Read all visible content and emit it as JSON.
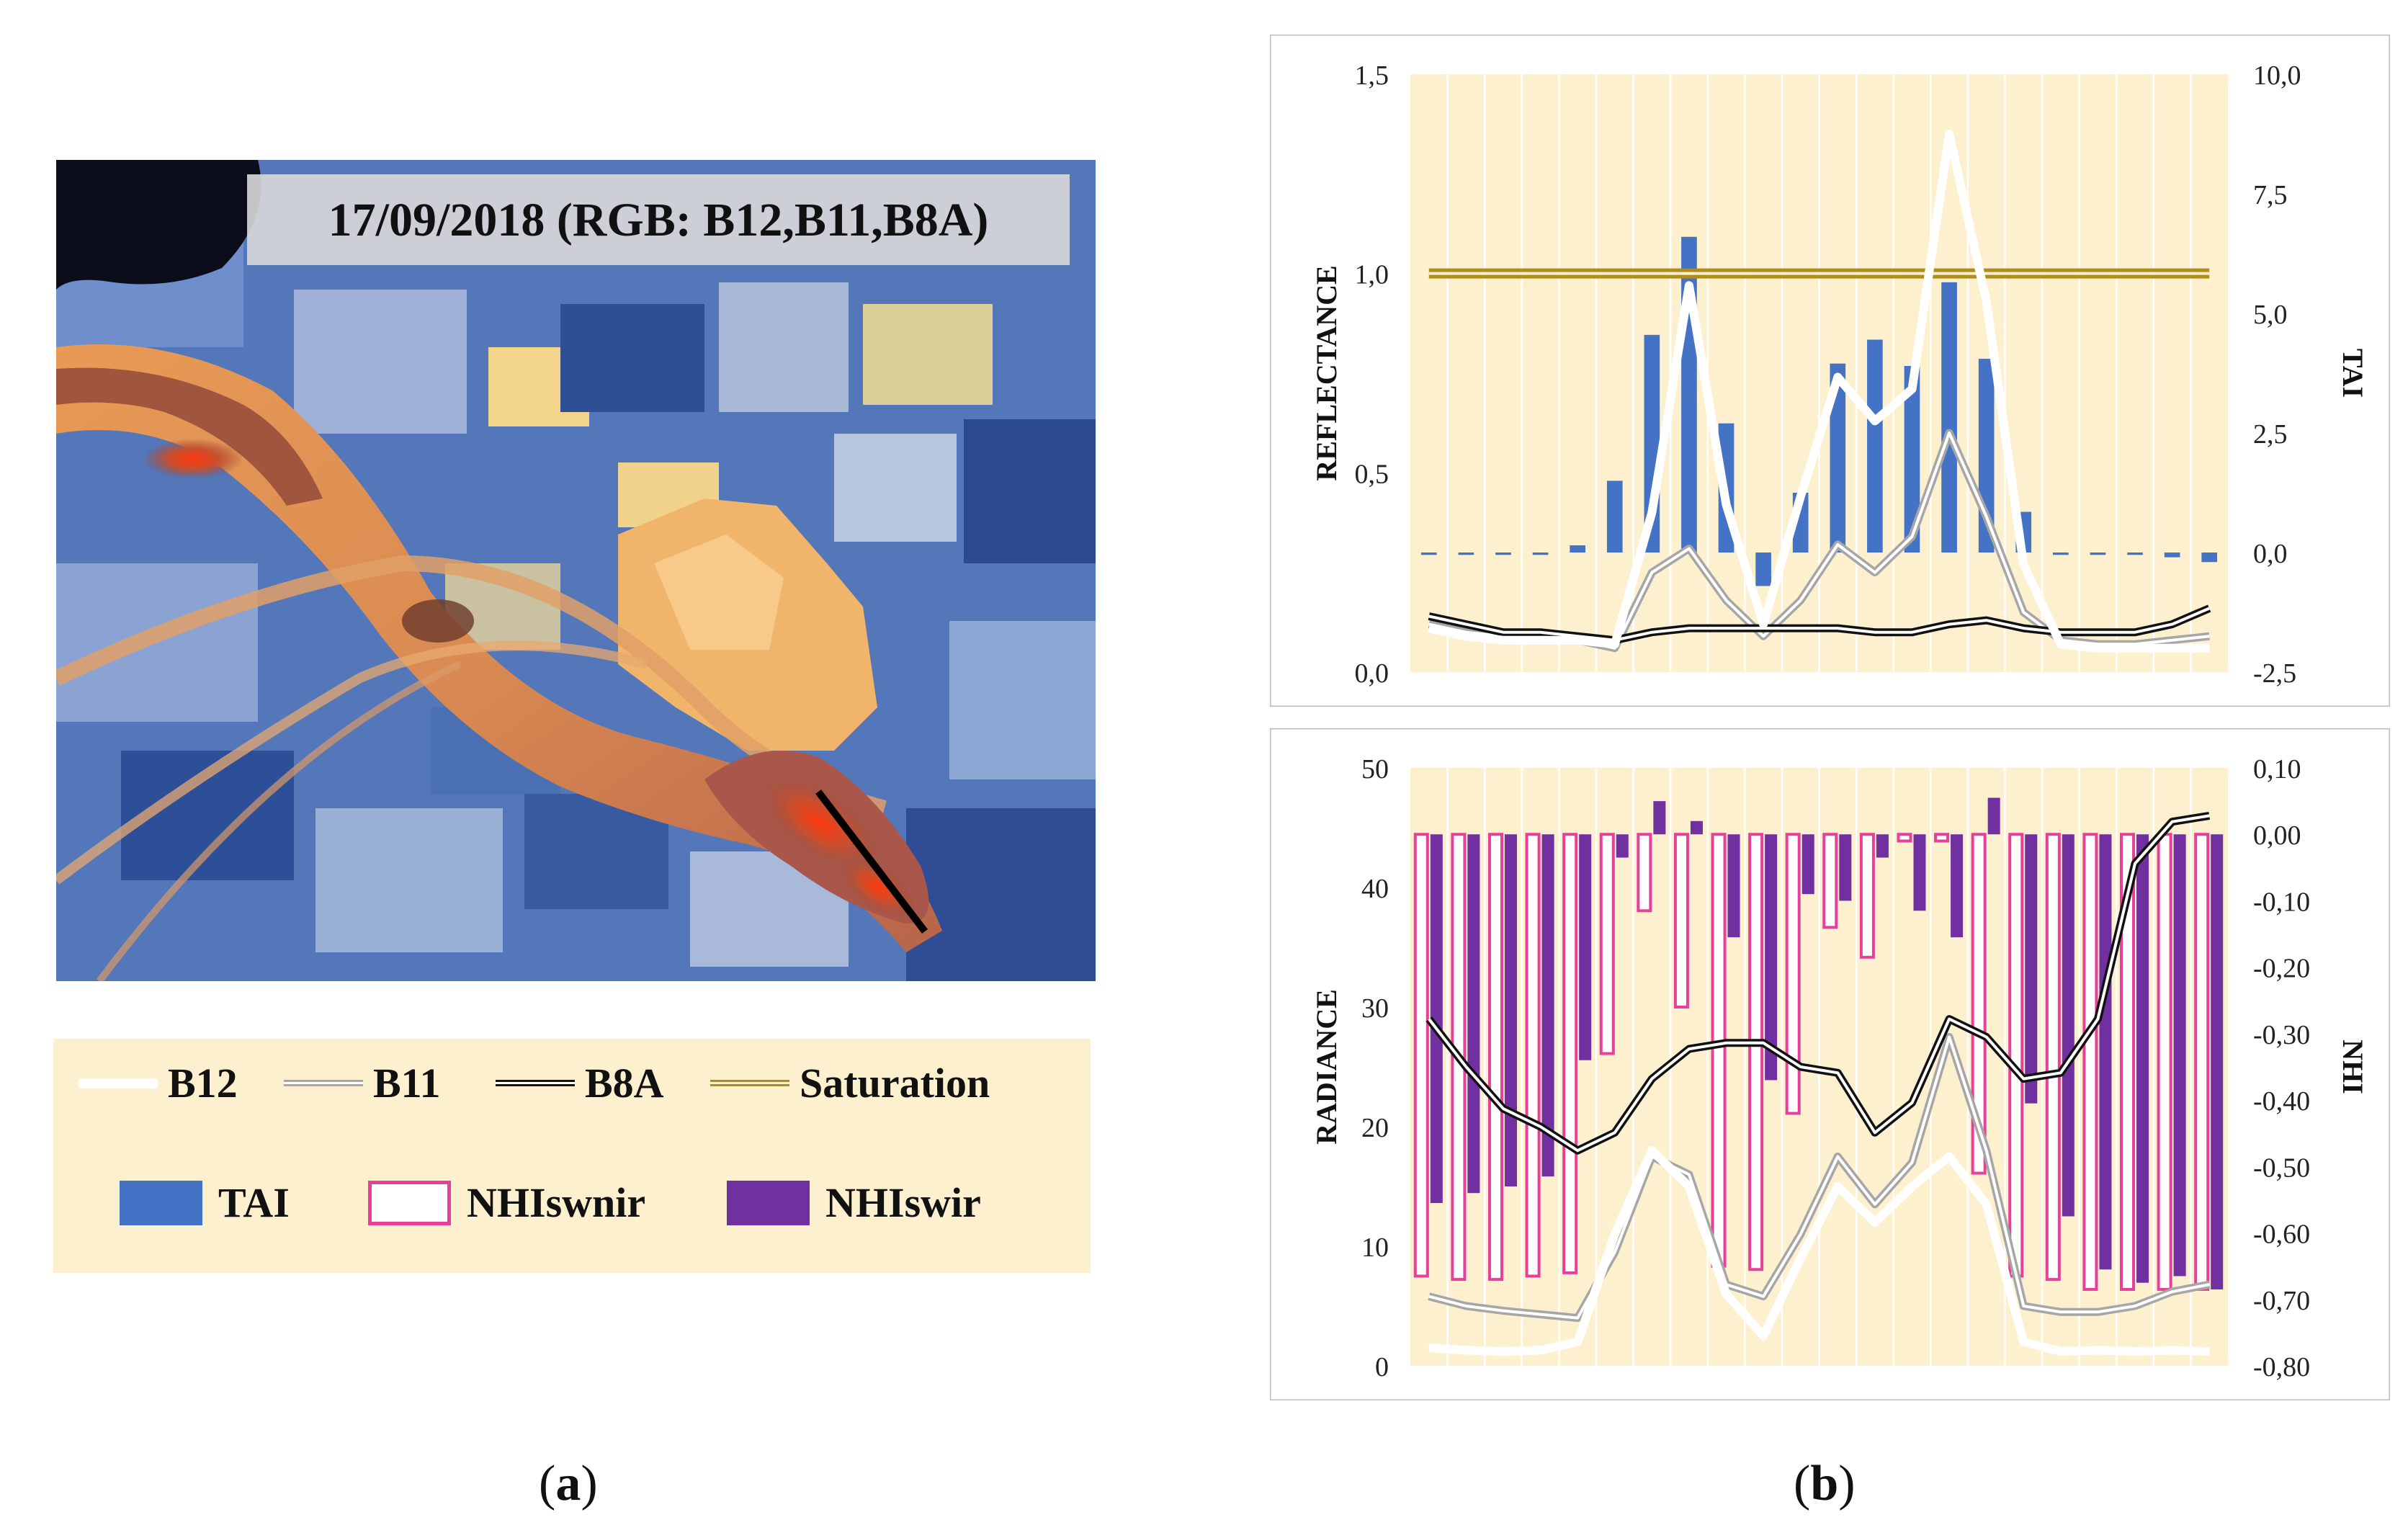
{
  "panels": {
    "a_label": "a",
    "b_label": "b",
    "image_caption": "17/09/2018 (RGB: B12,B11,B8A)"
  },
  "legend": {
    "b12": "B12",
    "b11": "B11",
    "b8a": "B8A",
    "saturation": "Saturation",
    "tai": "TAI",
    "nhiswnir": "NHIswnir",
    "nhiswir": "NHIswir"
  },
  "colors": {
    "plot_bg": "#fdf0cf",
    "tai": "#4472c4",
    "nhiswnir": "#e8409a",
    "nhiswir": "#7030a0",
    "b12": "#ffffff",
    "b11": "#a6a6a6",
    "b8a": "#111111",
    "saturation": "#b08c1a"
  },
  "chart_data": [
    {
      "type": "bar+line",
      "title": "",
      "ylabel": "REFLECTANCE",
      "y2label": "TAI",
      "ylim": [
        0,
        1.5
      ],
      "y2lim": [
        -2.5,
        10
      ],
      "yticks": [
        "0,0",
        "0,5",
        "1,0",
        "1,5"
      ],
      "y2ticks": [
        "-2,5",
        "0,0",
        "2,5",
        "5,0",
        "7,5",
        "10,0"
      ],
      "n_points": 22,
      "saturation": 1.0,
      "series": [
        {
          "name": "TAI",
          "kind": "bar",
          "axis": "right",
          "values": [
            -0.05,
            -0.05,
            -0.05,
            -0.05,
            0.15,
            1.5,
            4.55,
            6.6,
            2.7,
            -0.7,
            1.25,
            3.95,
            4.45,
            3.9,
            5.65,
            4.05,
            0.85,
            -0.05,
            -0.05,
            -0.05,
            -0.1,
            -0.2
          ]
        },
        {
          "name": "B12",
          "kind": "line",
          "axis": "left",
          "values": [
            0.11,
            0.09,
            0.08,
            0.08,
            0.08,
            0.07,
            0.4,
            0.97,
            0.42,
            0.12,
            0.44,
            0.74,
            0.63,
            0.71,
            1.35,
            0.93,
            0.27,
            0.07,
            0.06,
            0.06,
            0.06,
            0.06
          ]
        },
        {
          "name": "B11",
          "kind": "line",
          "axis": "left",
          "values": [
            0.12,
            0.1,
            0.09,
            0.09,
            0.08,
            0.06,
            0.25,
            0.31,
            0.18,
            0.09,
            0.18,
            0.32,
            0.25,
            0.34,
            0.6,
            0.39,
            0.15,
            0.08,
            0.07,
            0.07,
            0.08,
            0.09
          ]
        },
        {
          "name": "B8A",
          "kind": "line",
          "axis": "left",
          "values": [
            0.14,
            0.12,
            0.1,
            0.1,
            0.09,
            0.08,
            0.1,
            0.11,
            0.11,
            0.11,
            0.11,
            0.11,
            0.1,
            0.1,
            0.12,
            0.13,
            0.11,
            0.1,
            0.1,
            0.1,
            0.12,
            0.16
          ]
        }
      ]
    },
    {
      "type": "bar+line",
      "title": "",
      "ylabel": "RADIANCE",
      "y2label": "NHI",
      "ylim": [
        0,
        50
      ],
      "y2lim": [
        -0.8,
        0.1
      ],
      "yticks": [
        "0",
        "10",
        "20",
        "30",
        "40",
        "50"
      ],
      "y2ticks": [
        "-0,80",
        "-0,70",
        "-0,60",
        "-0,50",
        "-0,40",
        "-0,30",
        "-0,20",
        "-0,10",
        "0,00",
        "0,10"
      ],
      "n_points": 22,
      "series": [
        {
          "name": "NHIswnir",
          "kind": "bar",
          "axis": "right",
          "values": [
            -0.665,
            -0.67,
            -0.67,
            -0.665,
            -0.66,
            -0.33,
            -0.115,
            -0.26,
            -0.65,
            -0.655,
            -0.42,
            -0.14,
            -0.185,
            -0.01,
            -0.01,
            -0.51,
            -0.665,
            -0.67,
            -0.685,
            -0.685,
            -0.685,
            -0.685
          ]
        },
        {
          "name": "NHIswir",
          "kind": "bar",
          "axis": "right",
          "values": [
            -0.555,
            -0.54,
            -0.53,
            -0.515,
            -0.34,
            -0.035,
            0.05,
            0.02,
            -0.155,
            -0.37,
            -0.09,
            -0.1,
            -0.035,
            -0.115,
            -0.155,
            0.055,
            -0.405,
            -0.575,
            -0.655,
            -0.675,
            -0.665,
            -0.685
          ]
        },
        {
          "name": "B12",
          "kind": "line",
          "axis": "left",
          "values": [
            1.5,
            1.3,
            1.2,
            1.3,
            2.0,
            11.0,
            18.0,
            15.0,
            6.0,
            2.5,
            9.0,
            15.0,
            12.0,
            15.0,
            17.5,
            13.5,
            2.0,
            1.2,
            1.3,
            1.2,
            1.3,
            1.2
          ]
        },
        {
          "name": "B11",
          "kind": "line",
          "axis": "left",
          "values": [
            5.8,
            5.0,
            4.6,
            4.3,
            4.0,
            9.5,
            17.5,
            16.0,
            6.8,
            5.8,
            11.0,
            17.5,
            13.5,
            17.0,
            27.5,
            18.0,
            5.0,
            4.5,
            4.5,
            5.0,
            6.2,
            6.8
          ]
        },
        {
          "name": "B8A",
          "kind": "line",
          "axis": "left",
          "values": [
            29.0,
            25.0,
            21.5,
            20.0,
            18.0,
            19.5,
            24.0,
            26.5,
            27.0,
            27.0,
            25.0,
            24.5,
            19.5,
            22.0,
            29.0,
            27.5,
            24.0,
            24.5,
            29.0,
            42.0,
            45.5,
            46.0
          ]
        }
      ]
    }
  ]
}
